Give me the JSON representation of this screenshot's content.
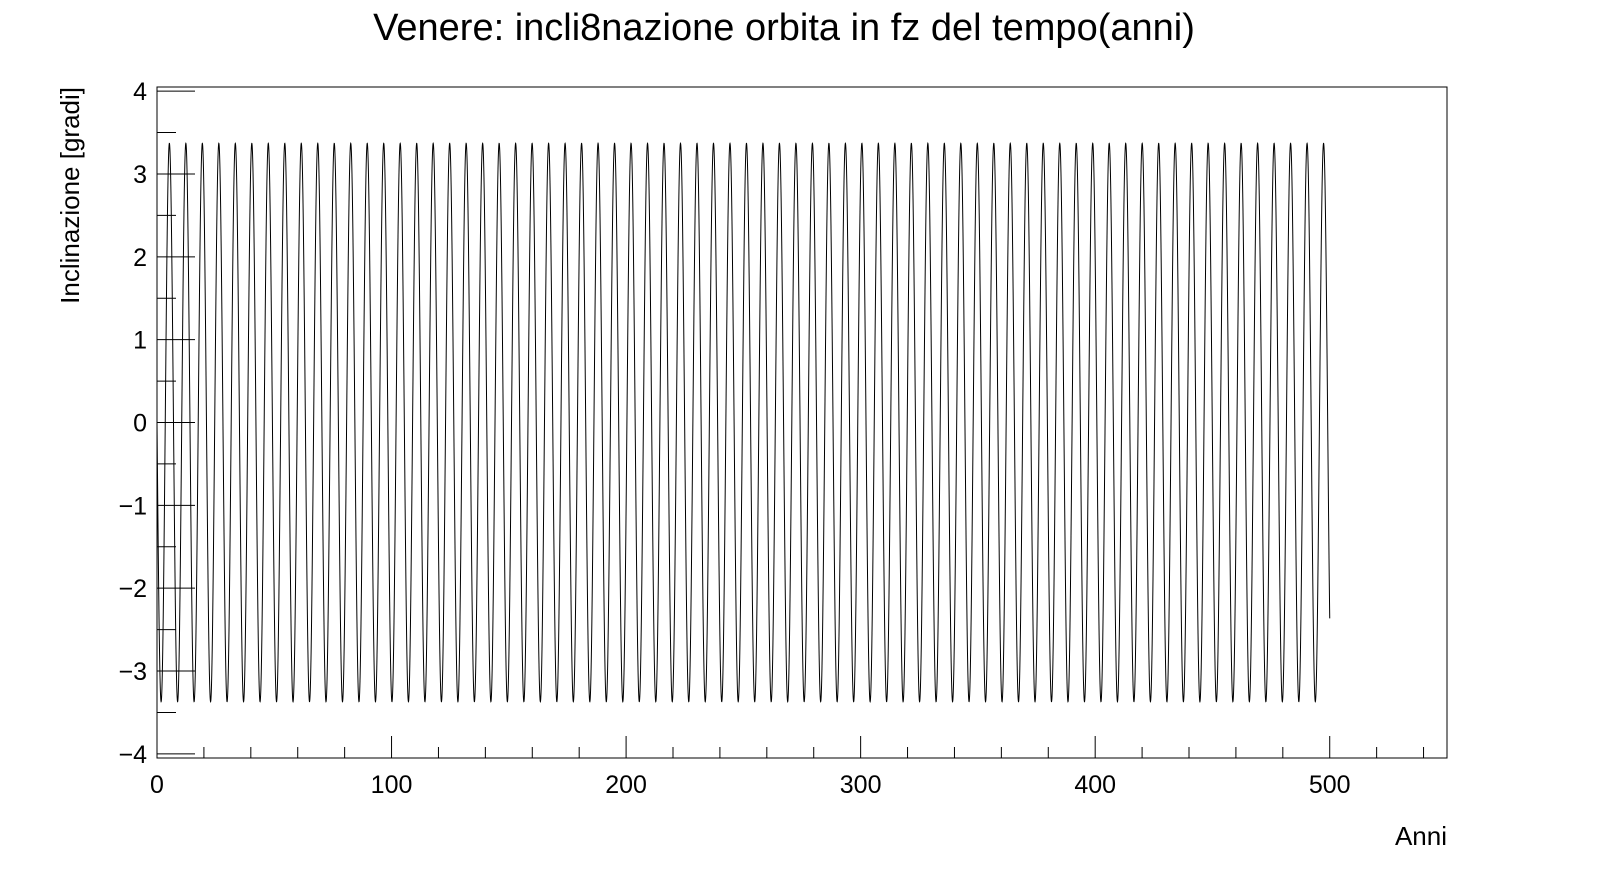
{
  "chart_data": {
    "type": "line",
    "title": "Venere: incli8nazione orbita in fz del tempo(anni)",
    "xlabel": "Anni",
    "ylabel": "Inclinazione [gradi]",
    "xlim": [
      0,
      550
    ],
    "ylim": [
      -4.05,
      4.05
    ],
    "x_ticks": [
      0,
      100,
      200,
      300,
      400,
      500
    ],
    "x_tick_labels": [
      "0",
      "100",
      "200",
      "300",
      "400",
      "500"
    ],
    "y_ticks": [
      -4,
      -3,
      -2,
      -1,
      0,
      1,
      2,
      3,
      4
    ],
    "y_tick_labels": [
      "−4",
      "−3",
      "−2",
      "−1",
      "0",
      "1",
      "2",
      "3",
      "4"
    ],
    "grid": false,
    "series": [
      {
        "amplitude": 3.37,
        "period": 7.03,
        "x_start": 0,
        "x_end": 500,
        "color": "#000000"
      }
    ]
  }
}
